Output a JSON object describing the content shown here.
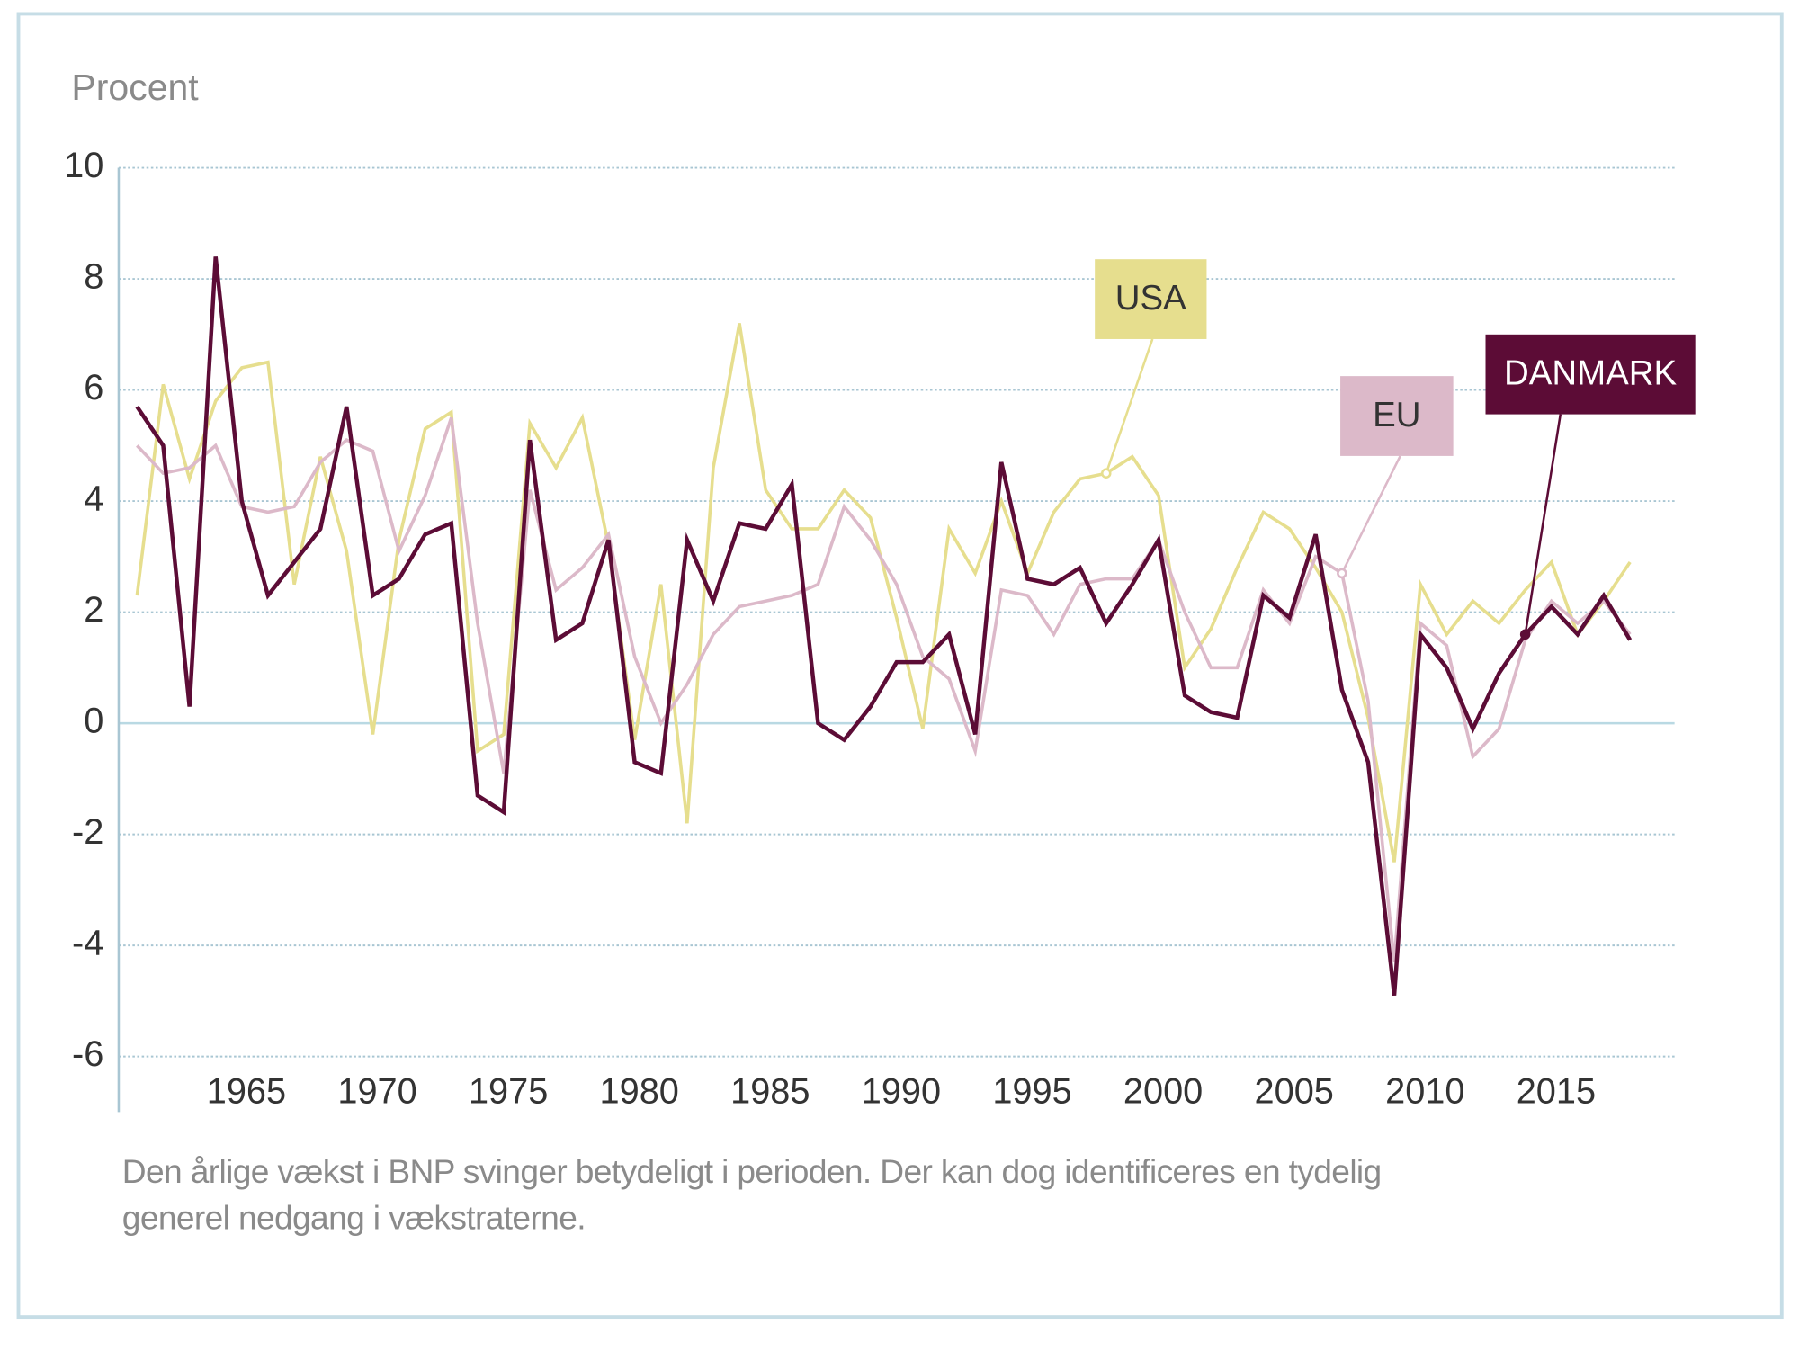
{
  "chart_data": {
    "type": "line",
    "y_label": "Procent",
    "caption": "Den årlige vækst i BNP svinger betydeligt i perioden. Der kan dog identificeres en tydelig generel nedgang i vækstraterne.",
    "x": [
      1961,
      1962,
      1963,
      1964,
      1965,
      1966,
      1967,
      1968,
      1969,
      1970,
      1971,
      1972,
      1973,
      1974,
      1975,
      1976,
      1977,
      1978,
      1979,
      1980,
      1981,
      1982,
      1983,
      1984,
      1985,
      1986,
      1987,
      1988,
      1989,
      1990,
      1991,
      1992,
      1993,
      1994,
      1995,
      1996,
      1997,
      1998,
      1999,
      2000,
      2001,
      2002,
      2003,
      2004,
      2005,
      2006,
      2007,
      2008,
      2009,
      2010,
      2011,
      2012,
      2013,
      2014,
      2015,
      2016,
      2017,
      2018
    ],
    "series": [
      {
        "name": "USA",
        "color": "#e6de8e",
        "values": [
          2.3,
          6.1,
          4.4,
          5.8,
          6.4,
          6.5,
          2.5,
          4.8,
          3.1,
          -0.2,
          3.3,
          5.3,
          5.6,
          -0.5,
          -0.2,
          5.4,
          4.6,
          5.5,
          3.2,
          -0.3,
          2.5,
          -1.8,
          4.6,
          7.2,
          4.2,
          3.5,
          3.5,
          4.2,
          3.7,
          1.9,
          -0.1,
          3.5,
          2.7,
          4.0,
          2.7,
          3.8,
          4.4,
          4.5,
          4.8,
          4.1,
          1.0,
          1.7,
          2.8,
          3.8,
          3.5,
          2.8,
          2.0,
          0.1,
          -2.5,
          2.5,
          1.6,
          2.2,
          1.8,
          2.4,
          2.9,
          1.6,
          2.2,
          2.9
        ]
      },
      {
        "name": "EU",
        "color": "#dcb9c9",
        "values": [
          5.0,
          4.5,
          4.6,
          5.0,
          3.9,
          3.8,
          3.9,
          4.7,
          5.1,
          4.9,
          3.1,
          4.1,
          5.5,
          1.8,
          -0.9,
          4.2,
          2.4,
          2.8,
          3.4,
          1.2,
          0.0,
          0.7,
          1.6,
          2.1,
          2.2,
          2.3,
          2.5,
          3.9,
          3.3,
          2.5,
          1.2,
          0.8,
          -0.5,
          2.4,
          2.3,
          1.6,
          2.5,
          2.6,
          2.6,
          3.3,
          2.0,
          1.0,
          1.0,
          2.4,
          1.8,
          3.0,
          2.7,
          0.4,
          -4.3,
          1.8,
          1.4,
          -0.6,
          -0.1,
          1.5,
          2.2,
          1.8,
          2.2,
          1.6
        ]
      },
      {
        "name": "DANMARK",
        "color": "#5c0c36",
        "values": [
          5.7,
          5.0,
          0.3,
          8.4,
          4.0,
          2.3,
          2.9,
          3.5,
          5.7,
          2.3,
          2.6,
          3.4,
          3.6,
          -1.3,
          -1.6,
          5.1,
          1.5,
          1.8,
          3.3,
          -0.7,
          -0.9,
          3.3,
          2.2,
          3.6,
          3.5,
          4.3,
          0.0,
          -0.3,
          0.3,
          1.1,
          1.1,
          1.6,
          -0.2,
          4.7,
          2.6,
          2.5,
          2.8,
          1.8,
          2.5,
          3.3,
          0.5,
          0.2,
          0.1,
          2.3,
          1.9,
          3.4,
          0.6,
          -0.7,
          -4.9,
          1.6,
          1.0,
          -0.1,
          0.9,
          1.6,
          2.1,
          1.6,
          2.3,
          1.5
        ]
      }
    ],
    "xlim": [
      1960.3,
      2019.7
    ],
    "xticks": [
      1965,
      1970,
      1975,
      1980,
      1985,
      1990,
      1995,
      2000,
      2005,
      2010,
      2015
    ],
    "ylim": [
      -7,
      10
    ],
    "yticks": [
      -6,
      -4,
      -2,
      0,
      2,
      4,
      6,
      8,
      10
    ],
    "grid": true
  }
}
